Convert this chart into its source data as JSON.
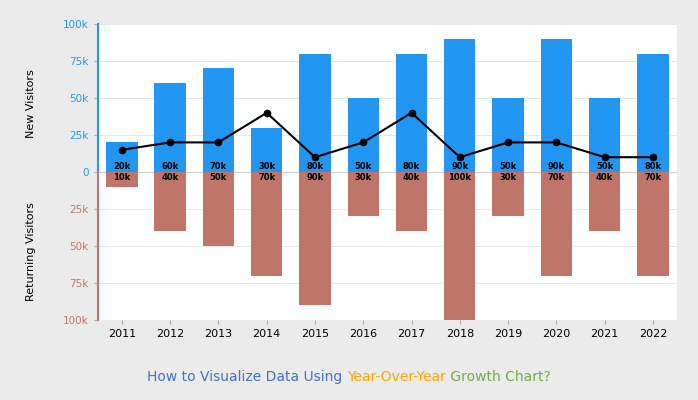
{
  "years": [
    2011,
    2012,
    2013,
    2014,
    2015,
    2016,
    2017,
    2018,
    2019,
    2020,
    2021,
    2022
  ],
  "new_visitors": [
    20000,
    60000,
    70000,
    30000,
    80000,
    50000,
    80000,
    90000,
    50000,
    90000,
    50000,
    80000
  ],
  "returning_visitors": [
    10000,
    40000,
    50000,
    70000,
    90000,
    30000,
    40000,
    100000,
    30000,
    70000,
    40000,
    70000
  ],
  "line_values": [
    15000,
    20000,
    20000,
    40000,
    10000,
    20000,
    40000,
    10000,
    20000,
    20000,
    10000,
    10000
  ],
  "bar_color_new": "#2196F3",
  "bar_color_ret": "#C0756A",
  "line_color": "black",
  "ylabel_new": "New Visitors",
  "ylabel_ret": "Returning Visitors",
  "title_part1": "How to Visualize Data Using ",
  "title_part2": "Year-Over-Year",
  "title_part3": " Growth Chart?",
  "color_part1": "#4472C4",
  "color_part2": "#FFA500",
  "color_part3": "#70AD47",
  "ytick_color_pos": "#2196F3",
  "ytick_color_neg": "#C0756A",
  "background_outer": "#ebebeb",
  "background_inner": "#ffffff",
  "spine_color_pos": "#2196F3",
  "spine_color_neg": "#C0756A"
}
